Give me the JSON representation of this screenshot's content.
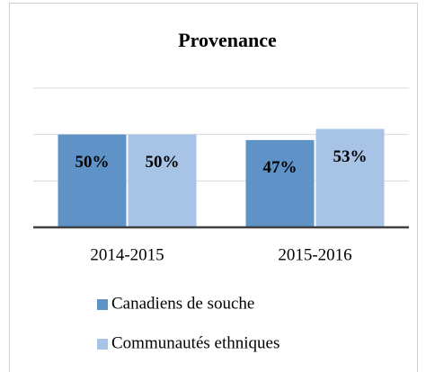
{
  "chart_data": {
    "type": "bar",
    "title": "Provenance",
    "categories": [
      "2014-2015",
      "2015-2016"
    ],
    "series": [
      {
        "name": "Canadiens de souche",
        "color": "#5f93c8",
        "values": [
          50,
          47
        ],
        "value_labels": [
          "50%",
          "47%"
        ]
      },
      {
        "name": "Communautés ethniques",
        "color": "#a7c3e5",
        "values": [
          50,
          53
        ],
        "value_labels": [
          "50%",
          "53%"
        ]
      }
    ],
    "ylim": [
      0,
      75
    ],
    "yticks": [
      0,
      25,
      50,
      75
    ],
    "grid": true
  }
}
